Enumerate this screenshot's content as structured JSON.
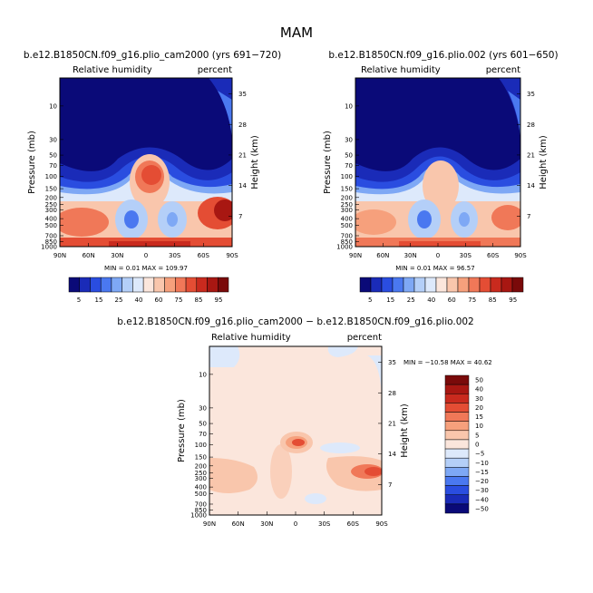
{
  "chart_data": {
    "type": "heatmap",
    "title": "MAM",
    "yticks_left": [
      "10",
      "30",
      "50",
      "70",
      "100",
      "150",
      "200",
      "250",
      "300",
      "400",
      "500",
      "700",
      "850",
      "1000"
    ],
    "yticks_right": [
      "35",
      "28",
      "21",
      "14",
      "7"
    ],
    "xticks": [
      "90N",
      "60N",
      "30N",
      "0",
      "30S",
      "60S",
      "90S"
    ],
    "ylabel_left": "Pressure (mb)",
    "ylabel_right": "Height (km)",
    "left_label": "Relative humidity",
    "right_label": "percent",
    "panels": [
      {
        "title": "b.e12.B1850CN.f09_g16.plio_cam2000 (yrs 691−720)",
        "min_text": "MIN =    0.01   MAX =  109.97",
        "min": 0.01,
        "max": 109.97
      },
      {
        "title": "b.e12.B1850CN.f09_g16.plio.002 (yrs 601−650)",
        "min_text": "MIN =    0.01   MAX =   96.57",
        "min": 0.01,
        "max": 96.57
      },
      {
        "title": "b.e12.B1850CN.f09_g16.plio_cam2000 − b.e12.B1850CN.f09_g16.plio.002",
        "min_text": "MIN = −10.58   MAX =  40.62",
        "min": -10.58,
        "max": 40.62
      }
    ],
    "colorbar_abs": {
      "labels": [
        "5",
        "15",
        "25",
        "40",
        "60",
        "75",
        "85",
        "95"
      ],
      "colors": [
        "#0a0a78",
        "#1a2bb8",
        "#2a4de0",
        "#4a78f0",
        "#7ea8f5",
        "#b4cff8",
        "#dde9fb",
        "#fbe6dc",
        "#f9c6ac",
        "#f6a07c",
        "#f07858",
        "#e44d34",
        "#c92a1e",
        "#a81712",
        "#7a0a0a"
      ]
    },
    "colorbar_diff": {
      "labels": [
        "50",
        "40",
        "30",
        "20",
        "15",
        "10",
        "5",
        "0",
        "−5",
        "−10",
        "−15",
        "−20",
        "−30",
        "−40",
        "−50"
      ],
      "colors": [
        "#7a0a0a",
        "#a81712",
        "#c92a1e",
        "#e44d34",
        "#f07858",
        "#f6a07c",
        "#f9c6ac",
        "#fbe6dc",
        "#dde9fb",
        "#b4cff8",
        "#7ea8f5",
        "#4a78f0",
        "#2a4de0",
        "#1a2bb8",
        "#0a0a78"
      ]
    }
  }
}
